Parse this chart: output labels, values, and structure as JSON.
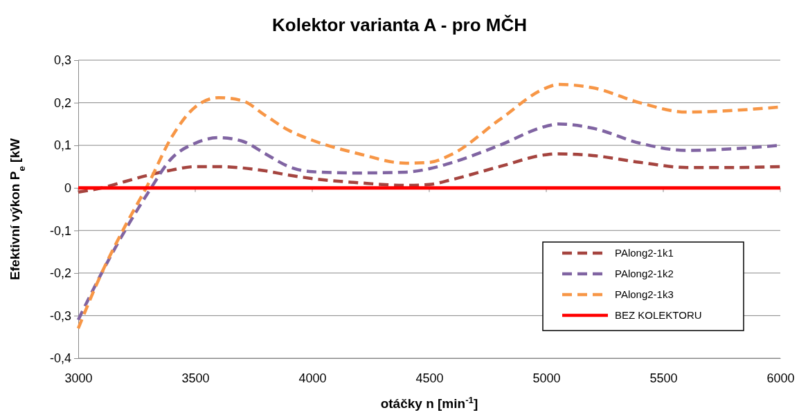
{
  "chart_data": {
    "type": "line",
    "title": "Kolektor varianta A - pro MČH",
    "xlabel": "otáčky n [min$^{-1}$]",
    "ylabel": "Efektivní výkon P$_{e}$ [kW",
    "x": [
      3000,
      3100,
      3200,
      3300,
      3400,
      3500,
      3600,
      3700,
      3800,
      3900,
      4000,
      4200,
      4400,
      4500,
      4600,
      4800,
      5000,
      5050,
      5200,
      5400,
      5600,
      5800,
      6000
    ],
    "xlim": [
      3000,
      6000
    ],
    "xticks": [
      3000,
      3500,
      4000,
      4500,
      5000,
      5500,
      6000
    ],
    "ylim": [
      -0.4,
      0.3
    ],
    "yticks": [
      {
        "value": -0.4,
        "label": "-0,4"
      },
      {
        "value": -0.3,
        "label": "-0,3"
      },
      {
        "value": -0.2,
        "label": "-0,2"
      },
      {
        "value": -0.1,
        "label": "-0,1"
      },
      {
        "value": 0,
        "label": "0"
      },
      {
        "value": 0.1,
        "label": "0,1"
      },
      {
        "value": 0.2,
        "label": "0,2"
      },
      {
        "value": 0.3,
        "label": "0,3"
      }
    ],
    "grid": "y",
    "legend": "bottom right",
    "series": [
      {
        "name": "PAlong2-1k1",
        "color": "#a5443f",
        "line_style": "dashed",
        "values": [
          -0.01,
          0,
          0.015,
          0.03,
          0.042,
          0.05,
          0.05,
          0.047,
          0.04,
          0.03,
          0.022,
          0.012,
          0.006,
          0.008,
          0.02,
          0.05,
          0.078,
          0.08,
          0.076,
          0.06,
          0.048,
          0.048,
          0.05
        ]
      },
      {
        "name": "PAlong2-1k2",
        "color": "#8064a2",
        "line_style": "dashed",
        "values": [
          -0.31,
          -0.2,
          -0.1,
          -0.01,
          0.07,
          0.105,
          0.118,
          0.11,
          0.08,
          0.05,
          0.038,
          0.035,
          0.037,
          0.045,
          0.06,
          0.1,
          0.145,
          0.15,
          0.14,
          0.105,
          0.088,
          0.092,
          0.1
        ]
      },
      {
        "name": "PAlong2-1k3",
        "color": "#f79646",
        "line_style": "dashed",
        "values": [
          -0.33,
          -0.2,
          -0.09,
          0.01,
          0.12,
          0.19,
          0.212,
          0.205,
          0.17,
          0.135,
          0.112,
          0.08,
          0.058,
          0.06,
          0.08,
          0.16,
          0.235,
          0.243,
          0.235,
          0.2,
          0.178,
          0.182,
          0.19
        ]
      },
      {
        "name": "BEZ KOLEKTORU",
        "color": "#ff0000",
        "line_style": "solid",
        "x": [
          3000,
          6000
        ],
        "values": [
          0,
          0
        ]
      }
    ]
  }
}
